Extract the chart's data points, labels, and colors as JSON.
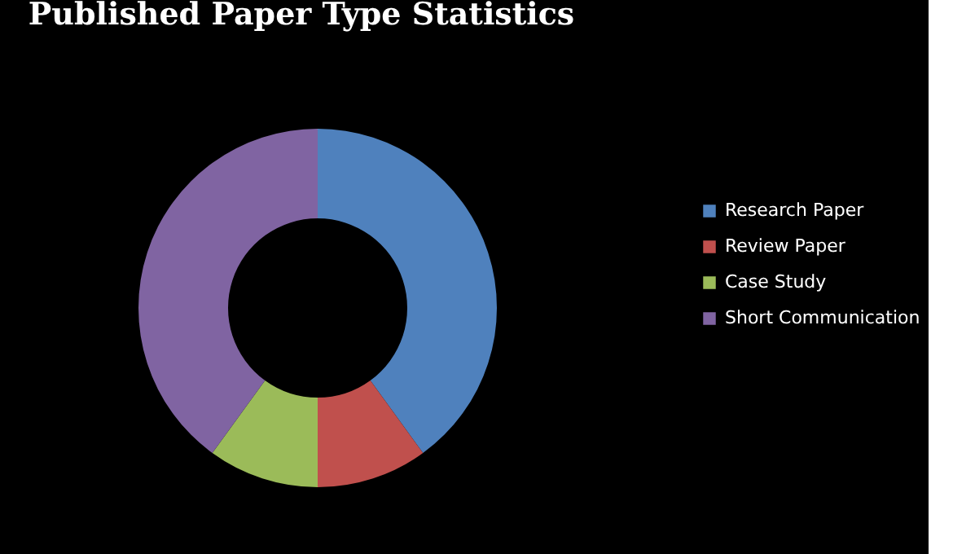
{
  "chart_data": {
    "type": "donut",
    "title": "Published Paper Type Statistics",
    "categories": [
      "Research Paper",
      "Review Paper",
      "Case Study",
      "Short Communication"
    ],
    "values": [
      40,
      10,
      10,
      40
    ],
    "colors": [
      "#4f81bd",
      "#c0504d",
      "#9bbb59",
      "#8064a2"
    ],
    "legend": "right"
  }
}
